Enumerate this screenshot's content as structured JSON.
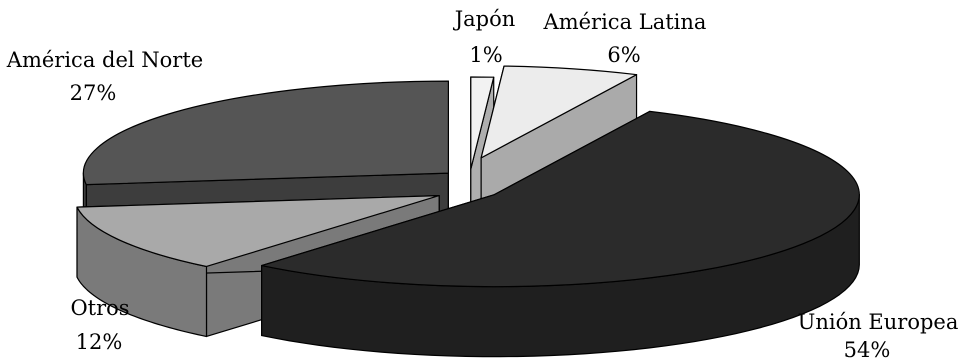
{
  "chart_data": {
    "type": "pie",
    "style": "3d-exploded",
    "title": "",
    "slices": [
      {
        "label": "Japón",
        "value": 1,
        "value_label": "1%",
        "color": "#f2f2f2"
      },
      {
        "label": "América Latina",
        "value": 6,
        "value_label": "6%",
        "color": "#ececec"
      },
      {
        "label": "Unión Europea",
        "value": 54,
        "value_label": "54%",
        "color": "#2b2b2b"
      },
      {
        "label": "Otros",
        "value": 12,
        "value_label": "12%",
        "color": "#a9a9a9"
      },
      {
        "label": "América del Norte",
        "value": 27,
        "value_label": "27%",
        "color": "#555555"
      }
    ]
  }
}
